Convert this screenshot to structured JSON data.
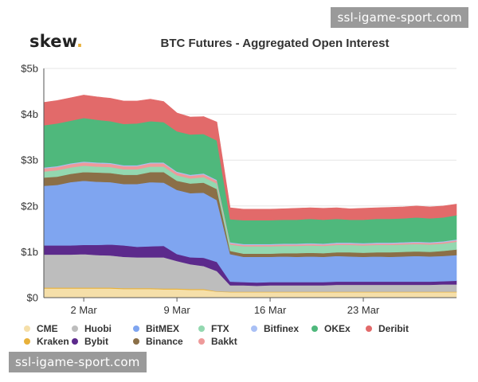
{
  "watermark_text": "ssl-igame-sport.com",
  "logo": {
    "text": "skew",
    "dot": "."
  },
  "chart_data": {
    "type": "area",
    "stacked": true,
    "title": "BTC Futures - Aggregated Open Interest",
    "xlabel": "",
    "ylabel": "",
    "ylim": [
      0,
      5
    ],
    "y_unit": "billion USD",
    "y_ticks": [
      0,
      1,
      2,
      3,
      4,
      5
    ],
    "y_tick_labels": [
      "$0",
      "$1b",
      "$2b",
      "$3b",
      "$4b",
      "$5b"
    ],
    "x_tick_labels": [
      "2 Mar",
      "9 Mar",
      "16 Mar",
      "23 Mar"
    ],
    "x_tick_days": [
      2,
      9,
      16,
      23
    ],
    "days": [
      -1,
      0,
      1,
      2,
      3,
      4,
      5,
      6,
      7,
      8,
      9,
      10,
      11,
      12,
      13,
      14,
      15,
      16,
      17,
      18,
      19,
      20,
      21,
      22,
      23,
      24,
      25,
      26,
      27,
      28,
      29,
      30
    ],
    "series": [
      {
        "name": "CME",
        "color": "#f5dfa9",
        "values": [
          0.2,
          0.2,
          0.2,
          0.2,
          0.2,
          0.2,
          0.19,
          0.19,
          0.19,
          0.18,
          0.18,
          0.17,
          0.17,
          0.13,
          0.12,
          0.12,
          0.12,
          0.12,
          0.12,
          0.12,
          0.12,
          0.12,
          0.12,
          0.12,
          0.12,
          0.12,
          0.12,
          0.12,
          0.12,
          0.12,
          0.12,
          0.12
        ]
      },
      {
        "name": "Kraken",
        "color": "#e8b13a",
        "values": [
          0.02,
          0.02,
          0.02,
          0.02,
          0.02,
          0.02,
          0.02,
          0.02,
          0.02,
          0.02,
          0.02,
          0.02,
          0.02,
          0.01,
          0.01,
          0.01,
          0.01,
          0.01,
          0.01,
          0.01,
          0.01,
          0.01,
          0.01,
          0.01,
          0.01,
          0.01,
          0.01,
          0.01,
          0.01,
          0.01,
          0.01,
          0.01
        ]
      },
      {
        "name": "Huobi",
        "color": "#bdbdbd",
        "values": [
          0.72,
          0.72,
          0.72,
          0.73,
          0.71,
          0.7,
          0.68,
          0.67,
          0.67,
          0.68,
          0.6,
          0.54,
          0.5,
          0.44,
          0.14,
          0.14,
          0.13,
          0.14,
          0.14,
          0.14,
          0.14,
          0.14,
          0.15,
          0.15,
          0.15,
          0.15,
          0.15,
          0.15,
          0.15,
          0.15,
          0.16,
          0.16
        ]
      },
      {
        "name": "Bybit",
        "color": "#5c2a8c",
        "values": [
          0.2,
          0.2,
          0.2,
          0.2,
          0.22,
          0.24,
          0.25,
          0.23,
          0.24,
          0.25,
          0.15,
          0.15,
          0.18,
          0.2,
          0.08,
          0.07,
          0.07,
          0.07,
          0.07,
          0.07,
          0.07,
          0.07,
          0.07,
          0.07,
          0.07,
          0.07,
          0.07,
          0.07,
          0.07,
          0.07,
          0.07,
          0.08
        ]
      },
      {
        "name": "BitMEX",
        "color": "#7fa5f0",
        "values": [
          1.3,
          1.32,
          1.38,
          1.4,
          1.38,
          1.36,
          1.34,
          1.37,
          1.4,
          1.38,
          1.4,
          1.4,
          1.42,
          1.35,
          0.6,
          0.55,
          0.56,
          0.55,
          0.56,
          0.55,
          0.56,
          0.55,
          0.56,
          0.55,
          0.54,
          0.55,
          0.54,
          0.55,
          0.56,
          0.55,
          0.55,
          0.56
        ]
      },
      {
        "name": "Binance",
        "color": "#8b6f47",
        "values": [
          0.18,
          0.18,
          0.18,
          0.19,
          0.2,
          0.2,
          0.2,
          0.2,
          0.22,
          0.23,
          0.2,
          0.21,
          0.22,
          0.24,
          0.07,
          0.07,
          0.07,
          0.07,
          0.07,
          0.08,
          0.08,
          0.08,
          0.08,
          0.09,
          0.09,
          0.09,
          0.1,
          0.1,
          0.1,
          0.1,
          0.11,
          0.12
        ]
      },
      {
        "name": "FTX",
        "color": "#93d8b0",
        "values": [
          0.13,
          0.14,
          0.14,
          0.14,
          0.13,
          0.13,
          0.12,
          0.12,
          0.12,
          0.12,
          0.12,
          0.11,
          0.12,
          0.12,
          0.14,
          0.16,
          0.16,
          0.16,
          0.16,
          0.16,
          0.16,
          0.16,
          0.16,
          0.16,
          0.16,
          0.16,
          0.16,
          0.16,
          0.16,
          0.16,
          0.16,
          0.17
        ]
      },
      {
        "name": "Bakkt",
        "color": "#ee9a9a",
        "values": [
          0.07,
          0.07,
          0.07,
          0.07,
          0.07,
          0.07,
          0.07,
          0.07,
          0.07,
          0.07,
          0.06,
          0.06,
          0.06,
          0.06,
          0.03,
          0.03,
          0.03,
          0.03,
          0.03,
          0.03,
          0.03,
          0.03,
          0.03,
          0.03,
          0.03,
          0.03,
          0.03,
          0.03,
          0.03,
          0.03,
          0.03,
          0.03
        ]
      },
      {
        "name": "Bitfinex",
        "color": "#a9c0f5",
        "values": [
          0.02,
          0.02,
          0.02,
          0.02,
          0.02,
          0.02,
          0.02,
          0.02,
          0.02,
          0.02,
          0.02,
          0.02,
          0.02,
          0.02,
          0.02,
          0.02,
          0.02,
          0.02,
          0.02,
          0.02,
          0.02,
          0.02,
          0.02,
          0.02,
          0.02,
          0.02,
          0.02,
          0.02,
          0.02,
          0.02,
          0.02,
          0.02
        ]
      },
      {
        "name": "OKEx",
        "color": "#4fb87c",
        "values": [
          0.92,
          0.93,
          0.93,
          0.95,
          0.93,
          0.91,
          0.9,
          0.91,
          0.9,
          0.88,
          0.88,
          0.88,
          0.86,
          0.86,
          0.5,
          0.52,
          0.52,
          0.52,
          0.52,
          0.52,
          0.53,
          0.52,
          0.52,
          0.5,
          0.51,
          0.52,
          0.52,
          0.52,
          0.53,
          0.52,
          0.52,
          0.53
        ]
      },
      {
        "name": "Deribit",
        "color": "#e26a6a",
        "values": [
          0.5,
          0.5,
          0.5,
          0.5,
          0.5,
          0.5,
          0.5,
          0.49,
          0.48,
          0.45,
          0.4,
          0.38,
          0.38,
          0.4,
          0.25,
          0.24,
          0.24,
          0.24,
          0.24,
          0.25,
          0.24,
          0.25,
          0.24,
          0.24,
          0.25,
          0.24,
          0.25,
          0.25,
          0.25,
          0.25,
          0.25,
          0.24
        ]
      }
    ]
  },
  "legend": [
    [
      {
        "name": "CME",
        "color": "#f5dfa9"
      },
      {
        "name": "Huobi",
        "color": "#bdbdbd"
      },
      {
        "name": "BitMEX",
        "color": "#7fa5f0"
      },
      {
        "name": "FTX",
        "color": "#93d8b0"
      },
      {
        "name": "Bitfinex",
        "color": "#a9c0f5"
      },
      {
        "name": "OKEx",
        "color": "#4fb87c"
      },
      {
        "name": "Deribit",
        "color": "#e26a6a"
      }
    ],
    [
      {
        "name": "Kraken",
        "color": "#e8b13a"
      },
      {
        "name": "Bybit",
        "color": "#5c2a8c"
      },
      {
        "name": "Binance",
        "color": "#8b6f47"
      },
      {
        "name": "Bakkt",
        "color": "#ee9a9a"
      }
    ]
  ]
}
